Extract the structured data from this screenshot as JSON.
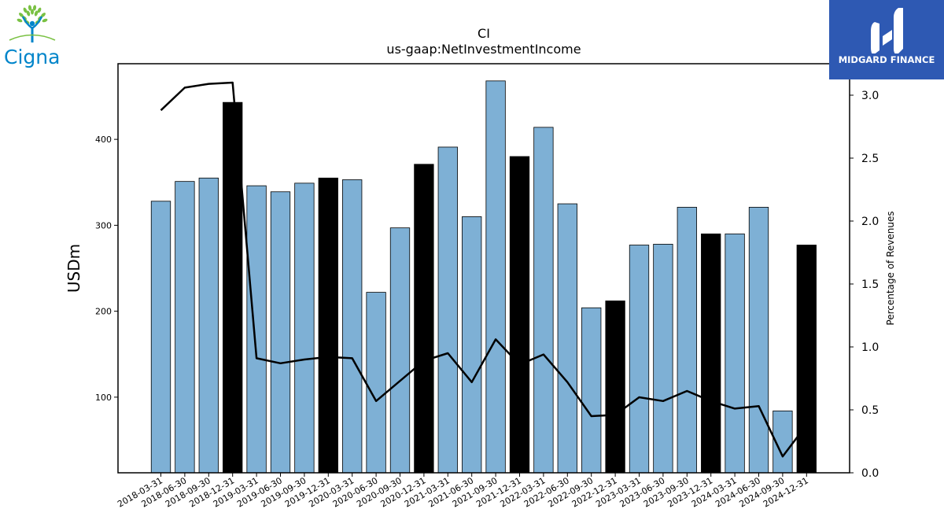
{
  "brand_left": {
    "name": "Cigna",
    "leaf_color": "#7ac143",
    "text_color": "#0085ca"
  },
  "brand_right": {
    "name": "MIDGARD FINANCE",
    "bg_color": "#2e59b3"
  },
  "chart_data": {
    "type": "bar",
    "title": "CI",
    "subtitle": "us-gaap:NetInvestmentIncome",
    "ylabel": "USDm",
    "y2label": "Percentage of Revenues",
    "categories": [
      "2018-03-31",
      "2018-06-30",
      "2018-09-30",
      "2018-12-31",
      "2019-03-31",
      "2019-06-30",
      "2019-09-30",
      "2019-12-31",
      "2020-03-31",
      "2020-06-30",
      "2020-09-30",
      "2020-12-31",
      "2021-03-31",
      "2021-06-30",
      "2021-09-30",
      "2021-12-31",
      "2022-03-31",
      "2022-06-30",
      "2022-09-30",
      "2022-12-31",
      "2023-03-31",
      "2023-06-30",
      "2023-09-30",
      "2023-12-31",
      "2024-03-31",
      "2024-06-30",
      "2024-09-30",
      "2024-12-31"
    ],
    "series": [
      {
        "values": [
          328,
          351,
          355,
          443,
          346,
          339,
          349,
          355,
          353,
          222,
          297,
          371,
          391,
          310,
          468,
          380,
          414,
          325,
          204,
          212,
          277,
          278,
          321,
          290,
          290,
          321,
          84,
          277
        ]
      },
      {
        "axis": "right",
        "values": [
          2.88,
          3.06,
          3.09,
          3.1,
          0.91,
          0.87,
          0.9,
          0.92,
          0.91,
          0.57,
          0.73,
          0.89,
          0.95,
          0.72,
          1.06,
          0.86,
          0.94,
          0.72,
          0.45,
          0.46,
          0.6,
          0.57,
          0.65,
          0.57,
          0.51,
          0.53,
          0.13,
          0.38
        ]
      }
    ],
    "highlight_categories": [
      "2018-12-31",
      "2019-12-31",
      "2020-12-31",
      "2021-12-31",
      "2022-12-31",
      "2023-12-31",
      "2024-12-31"
    ],
    "bar_color": "#7eb0d5",
    "highlight_color": "#000000",
    "line_color": "#000000",
    "ylim": [
      12,
      488
    ],
    "yticks": [
      100,
      200,
      300,
      400
    ],
    "y2lim": [
      0,
      3.25
    ],
    "y2ticks": [
      "0.0",
      "0.5",
      "1.0",
      "1.5",
      "2.0",
      "2.5",
      "3.0"
    ],
    "grid": false,
    "legend": "none"
  }
}
